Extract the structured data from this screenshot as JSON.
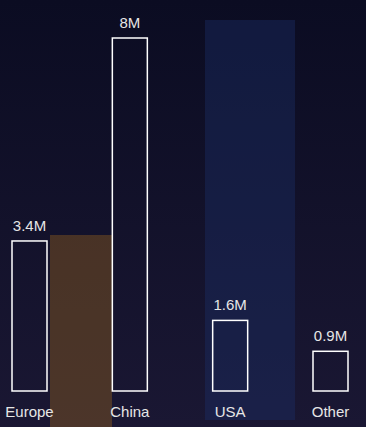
{
  "chart_data": {
    "type": "bar",
    "categories": [
      "Europe",
      "China",
      "USA",
      "Other"
    ],
    "values": [
      3.4,
      8,
      1.6,
      0.9
    ],
    "value_labels": [
      "3.4M",
      "8M",
      "1.6M",
      "0.9M"
    ],
    "ylim": [
      0,
      8
    ],
    "color": "#ffffff",
    "data_labels": true,
    "tick_labels": "x",
    "grid": false
  }
}
